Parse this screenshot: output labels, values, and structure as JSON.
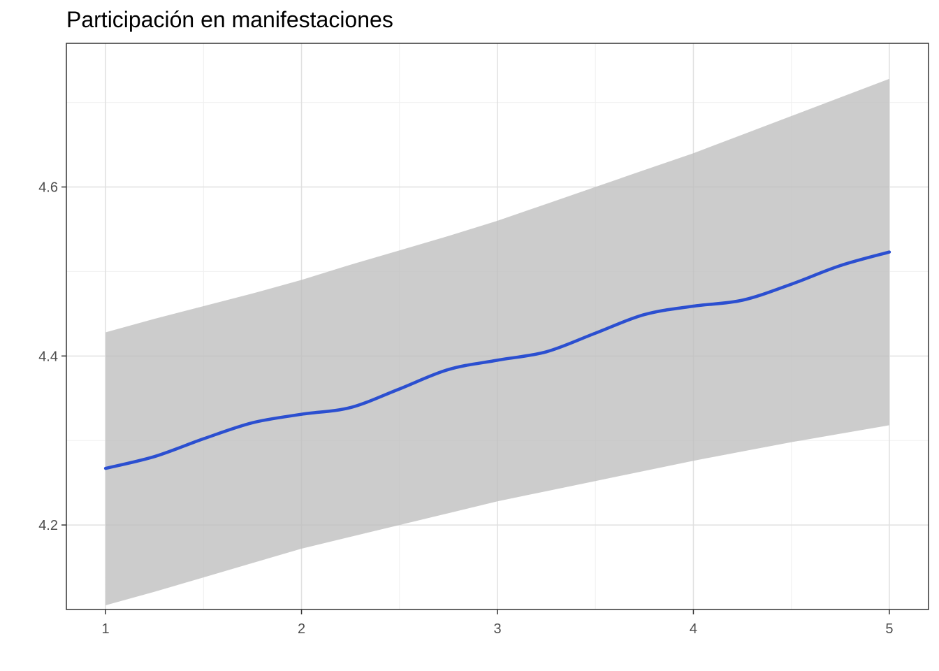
{
  "chart_data": {
    "type": "line",
    "title": "Participación en manifestaciones",
    "xlabel": "",
    "ylabel": "",
    "xlim": [
      0.8,
      5.2
    ],
    "ylim": [
      4.1,
      4.77
    ],
    "x_ticks": [
      1,
      2,
      3,
      4,
      5
    ],
    "x_tick_labels": [
      "1",
      "2",
      "3",
      "4",
      "5"
    ],
    "y_ticks": [
      4.2,
      4.4,
      4.6
    ],
    "y_tick_labels": [
      "4.2",
      "4.4",
      "4.6"
    ],
    "grid": true,
    "legend": "none",
    "series": [
      {
        "x": [
          1,
          1.25,
          1.5,
          1.75,
          2,
          2.25,
          2.5,
          2.75,
          3,
          3.25,
          3.5,
          3.75,
          4,
          4.25,
          4.5,
          4.75,
          5
        ],
        "values": [
          4.267,
          4.281,
          4.302,
          4.321,
          4.331,
          4.339,
          4.361,
          4.384,
          4.395,
          4.405,
          4.427,
          4.449,
          4.459,
          4.466,
          4.485,
          4.507,
          4.523
        ],
        "lower": [
          4.105,
          4.121,
          4.138,
          4.155,
          4.172,
          4.186,
          4.2,
          4.214,
          4.228,
          4.24,
          4.252,
          4.264,
          4.276,
          4.287,
          4.298,
          4.308,
          4.318
        ],
        "upper": [
          4.428,
          4.444,
          4.459,
          4.474,
          4.49,
          4.508,
          4.525,
          4.542,
          4.56,
          4.58,
          4.6,
          4.62,
          4.64,
          4.662,
          4.684,
          4.706,
          4.728
        ]
      }
    ],
    "colors": {
      "line": "#2b4fd0",
      "ribbon": "#bebebe",
      "grid_major": "#e0e0e0",
      "grid_minor": "#f0f0f0",
      "panel_border": "#333333",
      "tick_text": "#4d4d4d"
    }
  }
}
